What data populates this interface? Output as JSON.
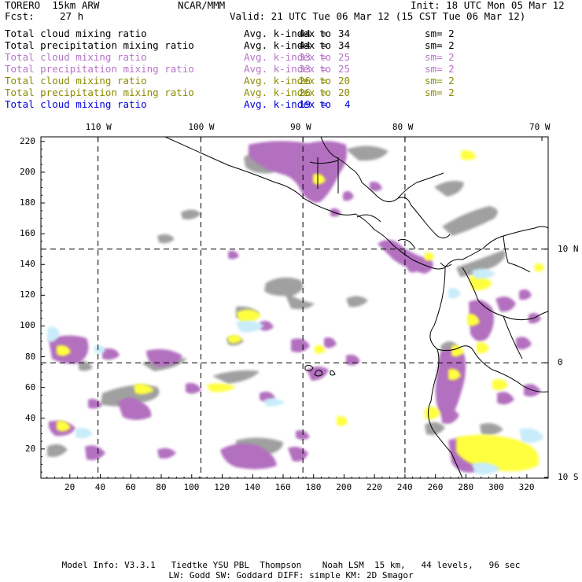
{
  "header": {
    "model": "TORERO  15km ARW",
    "center": "NCAR/MMM",
    "init": "Init: 18 UTC Mon 05 Mar 12",
    "fcst_label": "Fcst:",
    "fcst_value": "27 h",
    "valid": "Valid: 21 UTC Tue 06 Mar 12 (15 CST Tue 06 Mar 12)"
  },
  "legend": [
    {
      "field": "Total cloud mixing ratio",
      "stat": "Avg. k-index =",
      "from": "44",
      "to_label": "to",
      "to": "34",
      "sm": "sm= 2",
      "color": "#000000"
    },
    {
      "field": "Total precipitation mixing ratio",
      "stat": "Avg. k-index =",
      "from": "44",
      "to_label": "to",
      "to": "34",
      "sm": "sm= 2",
      "color": "#000000"
    },
    {
      "field": "Total cloud mixing ratio",
      "stat": "Avg. k-index =",
      "from": "33",
      "to_label": "to",
      "to": "25",
      "sm": "sm= 2",
      "color": "#b874c9"
    },
    {
      "field": "Total precipitation mixing ratio",
      "stat": "Avg. k-index =",
      "from": "33",
      "to_label": "to",
      "to": "25",
      "sm": "sm= 2",
      "color": "#b874c9"
    },
    {
      "field": "Total cloud mixing ratio",
      "stat": "Avg. k-index =",
      "from": "26",
      "to_label": "to",
      "to": "20",
      "sm": "sm= 2",
      "color": "#8b8b00"
    },
    {
      "field": "Total precipitation mixing ratio",
      "stat": "Avg. k-index =",
      "from": "26",
      "to_label": "to",
      "to": "20",
      "sm": "sm= 2",
      "color": "#8b8b00"
    },
    {
      "field": "Total cloud mixing ratio",
      "stat": "Avg. k-index =",
      "from": "19",
      "to_label": "to",
      "to": "4",
      "sm": "",
      "color": "#0000dd"
    }
  ],
  "map": {
    "top_lon_labels": [
      "110 W",
      "100 W",
      "90 W",
      "80 W",
      "70 W"
    ],
    "right_lat_labels": [
      "10 N",
      "0",
      "10 S"
    ],
    "bottom_grid_ticks": [
      "20",
      "40",
      "60",
      "80",
      "100",
      "120",
      "140",
      "160",
      "180",
      "200",
      "220",
      "240",
      "260",
      "280",
      "300",
      "320"
    ],
    "left_grid_ticks": [
      "220",
      "200",
      "180",
      "160",
      "140",
      "120",
      "100",
      "80",
      "60",
      "40",
      "20"
    ],
    "x_range": [
      1,
      334
    ],
    "y_range": [
      1,
      223
    ],
    "meridians_grid_x": [
      38.5,
      106,
      173,
      240
    ],
    "parallels_grid_y": [
      150,
      76
    ],
    "colors": {
      "level_1": "#a0a0a0",
      "level_2": "#b26fbf",
      "level_3": "#ffff40",
      "level_4": "#c8ecfa",
      "coast": "#000000"
    }
  },
  "footer": {
    "line1": "Model Info: V3.3.1   Tiedtke YSU PBL  Thompson    Noah LSM  15 km,   44 levels,   96 sec",
    "line2": "LW: Godd SW: Goddard DIFF: simple KM: 2D Smagor"
  }
}
